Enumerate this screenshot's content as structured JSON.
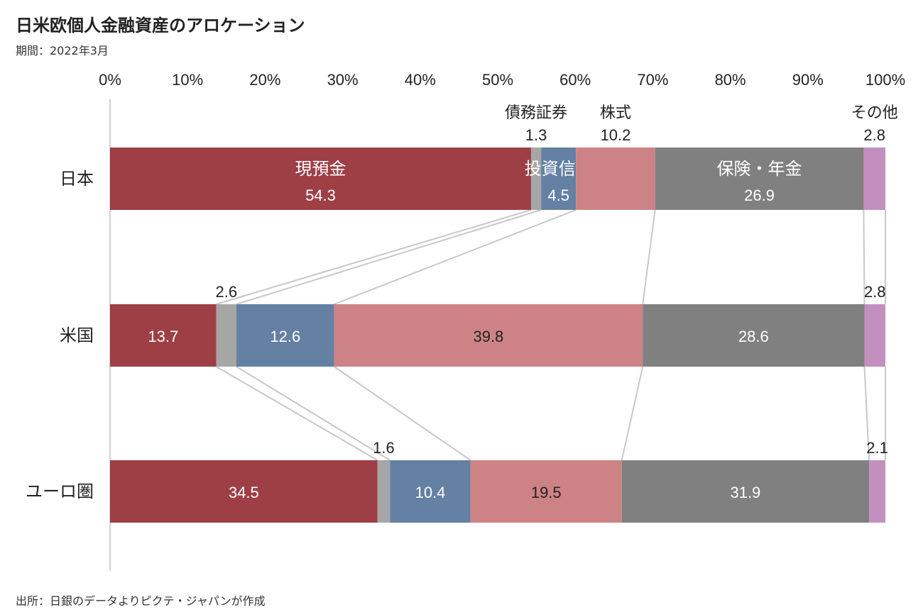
{
  "title": "日米欧個人金融資産のアロケーション",
  "subtitle": "期間：2022年3月",
  "source": "出所：日銀のデータよりピクテ・ジャパンが作成",
  "chart_data": {
    "type": "bar",
    "orientation": "horizontal-stacked-100",
    "title": "日米欧個人金融資産のアロケーション",
    "xlim": [
      0,
      100
    ],
    "xticks": [
      "0%",
      "10%",
      "20%",
      "30%",
      "40%",
      "50%",
      "60%",
      "70%",
      "80%",
      "90%",
      "100%"
    ],
    "categories": [
      "日本",
      "米国",
      "ユーロ圏"
    ],
    "series": [
      {
        "name": "現預金",
        "color": "#9e3f45",
        "values": [
          54.3,
          13.7,
          34.5
        ],
        "label_pos": [
          "inside",
          "inside",
          "inside"
        ]
      },
      {
        "name": "債務証券",
        "color": "#a6a6a6",
        "values": [
          1.3,
          2.6,
          1.6
        ],
        "label_pos": [
          "above",
          "above",
          "above"
        ]
      },
      {
        "name": "投資信託",
        "color": "#6480a3",
        "values": [
          4.5,
          12.6,
          10.4
        ],
        "label_pos": [
          "inside",
          "inside",
          "inside"
        ]
      },
      {
        "name": "株式",
        "color": "#cd8385",
        "values": [
          10.2,
          39.8,
          19.5
        ],
        "label_pos": [
          "above",
          "inside",
          "inside"
        ]
      },
      {
        "name": "保険・年金",
        "color": "#808080",
        "values": [
          26.9,
          28.6,
          31.9
        ],
        "label_pos": [
          "inside",
          "inside",
          "inside"
        ]
      },
      {
        "name": "その他",
        "color": "#c38fbf",
        "values": [
          2.8,
          2.8,
          2.1
        ],
        "label_pos": [
          "above",
          "above",
          "above"
        ]
      }
    ],
    "series_names_shown_on": "日本",
    "connector_lines": true,
    "grid": false
  }
}
